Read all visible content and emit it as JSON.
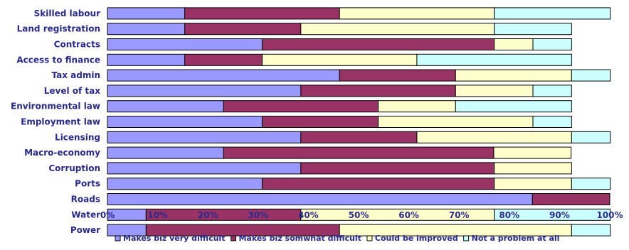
{
  "chart_data": {
    "type": "bar",
    "orientation": "horizontal",
    "stacked": "percent",
    "categories": [
      "Skilled labour",
      "Land registration",
      "Contracts",
      "Access to finance",
      "Tax admin",
      "Level of tax",
      "Environmental law",
      "Employment law",
      "Licensing",
      "Macro-economy",
      "Corruption",
      "Ports",
      "Roads",
      "Water",
      "Power"
    ],
    "series": [
      {
        "name": "Makes biz very difficult",
        "color": "#9999ff",
        "values": [
          15.4,
          15.4,
          30.8,
          15.4,
          46.2,
          38.5,
          23.1,
          30.8,
          38.5,
          23.1,
          38.5,
          30.8,
          84.6,
          7.7,
          7.7
        ]
      },
      {
        "name": "Makes biz somwhat difficult",
        "color": "#993366",
        "values": [
          30.8,
          23.1,
          46.2,
          15.4,
          23.1,
          30.8,
          30.8,
          23.1,
          23.1,
          53.8,
          38.5,
          46.2,
          15.4,
          30.8,
          38.5
        ]
      },
      {
        "name": "Could be improved",
        "color": "#ffffcc",
        "values": [
          30.8,
          38.5,
          7.7,
          30.8,
          23.1,
          15.4,
          15.4,
          30.8,
          30.8,
          15.4,
          15.4,
          15.4,
          0,
          38.5,
          46.2
        ]
      },
      {
        "name": "Not a problem at all",
        "color": "#ccffff",
        "values": [
          23.1,
          15.4,
          7.7,
          30.8,
          7.7,
          7.7,
          23.1,
          7.7,
          7.7,
          0,
          0,
          7.7,
          0,
          23.1,
          7.7
        ]
      }
    ],
    "xticks": [
      "0%",
      "10%",
      "20%",
      "30%",
      "40%",
      "50%",
      "60%",
      "70%",
      "80%",
      "90%",
      "100%"
    ],
    "xlim": [
      0,
      100
    ],
    "grid": false,
    "legend": "bottom"
  }
}
